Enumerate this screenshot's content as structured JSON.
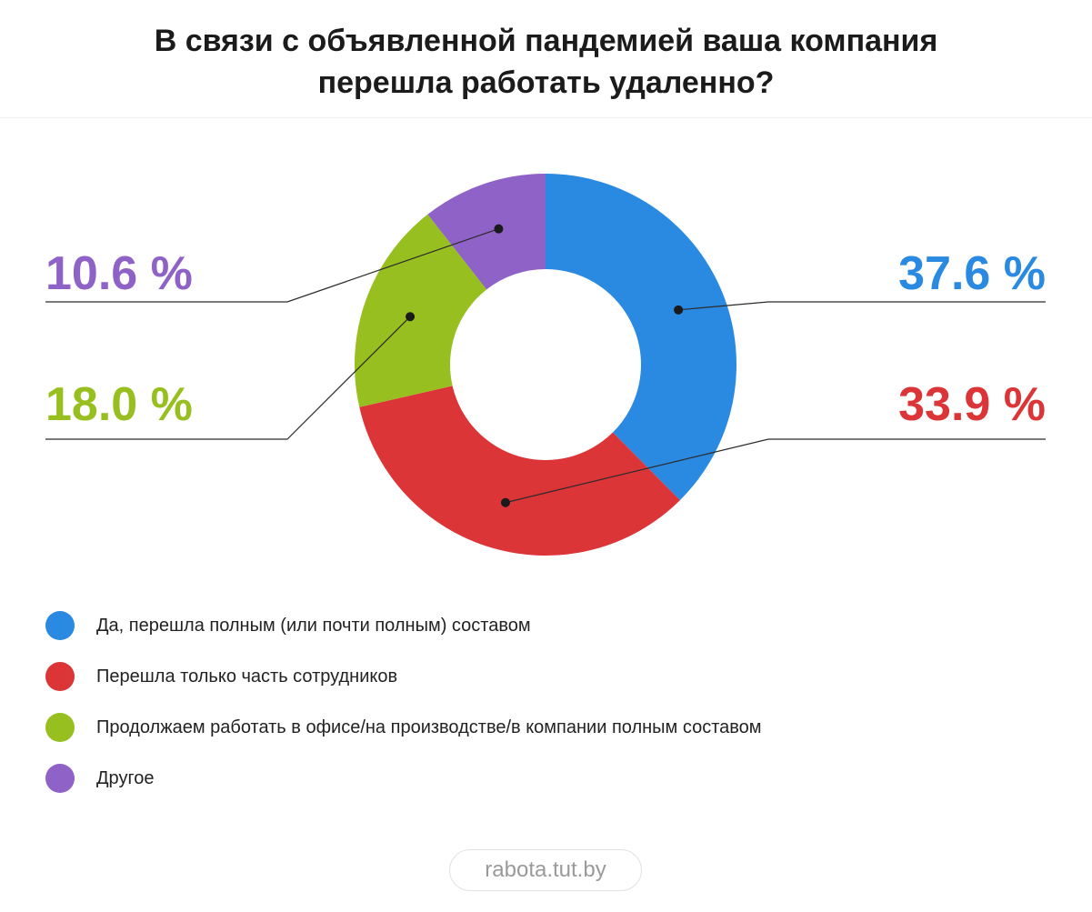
{
  "title": {
    "line1": "В связи с объявленной пандемией ваша компания",
    "line2": "перешла работать удаленно?"
  },
  "chart_data": {
    "type": "pie",
    "variant": "donut",
    "slices": [
      {
        "label": "Да, перешла полным (или почти полным) составом",
        "value": 37.6,
        "display": "37.6 %",
        "color": "#2a89e0",
        "side": "right",
        "row": 0
      },
      {
        "label": "Перешла только часть сотрудников",
        "value": 33.9,
        "display": "33.9 %",
        "color": "#dc3538",
        "side": "right",
        "row": 1
      },
      {
        "label": "Продолжаем работать в офисе/на производстве/в компании полным составом",
        "value": 18.0,
        "display": "18.0 %",
        "color": "#96bf1f",
        "side": "left",
        "row": 1
      },
      {
        "label": "Другое",
        "value": 10.6,
        "display": "10.6 %",
        "color": "#8e62c6",
        "side": "left",
        "row": 0
      }
    ],
    "start_angle": "12 o'clock",
    "direction": "clockwise",
    "legend_position": "bottom-left"
  },
  "footer": {
    "source": "rabota.tut.by"
  }
}
